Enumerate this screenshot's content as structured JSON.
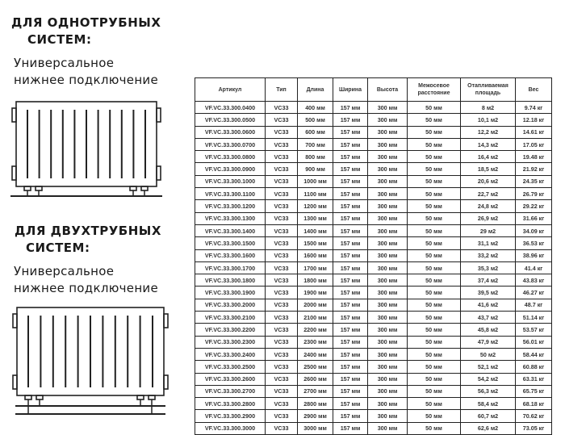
{
  "sections": [
    {
      "title_line1": "ДЛЯ ОДНОТРУБНЫХ",
      "title_line2": "СИСТЕМ:",
      "subtitle_line1": "Универсальное",
      "subtitle_line2": "нижнее подключение"
    },
    {
      "title_line1": "ДЛЯ ДВУХТРУБНЫХ",
      "title_line2": "СИСТЕМ:",
      "subtitle_line1": "Универсальное",
      "subtitle_line2": "нижнее подключение"
    }
  ],
  "table": {
    "headers": [
      "Артикул",
      "Тип",
      "Длина",
      "Ширина",
      "Высота",
      "Межосевое расстояние",
      "Отапливаемая площадь",
      "Вес"
    ],
    "rows": [
      [
        "VF.VC.33.300.0400",
        "VC33",
        "400 мм",
        "157 мм",
        "300 мм",
        "50 мм",
        "8 м2",
        "9.74 кг"
      ],
      [
        "VF.VC.33.300.0500",
        "VC33",
        "500 мм",
        "157 мм",
        "300 мм",
        "50 мм",
        "10,1 м2",
        "12.18 кг"
      ],
      [
        "VF.VC.33.300.0600",
        "VC33",
        "600 мм",
        "157 мм",
        "300 мм",
        "50 мм",
        "12,2 м2",
        "14.61 кг"
      ],
      [
        "VF.VC.33.300.0700",
        "VC33",
        "700 мм",
        "157 мм",
        "300 мм",
        "50 мм",
        "14,3 м2",
        "17.05 кг"
      ],
      [
        "VF.VC.33.300.0800",
        "VC33",
        "800 мм",
        "157 мм",
        "300 мм",
        "50 мм",
        "16,4 м2",
        "19.48 кг"
      ],
      [
        "VF.VC.33.300.0900",
        "VC33",
        "900 мм",
        "157 мм",
        "300 мм",
        "50 мм",
        "18,5 м2",
        "21.92 кг"
      ],
      [
        "VF.VC.33.300.1000",
        "VC33",
        "1000 мм",
        "157 мм",
        "300 мм",
        "50 мм",
        "20,6 м2",
        "24.35 кг"
      ],
      [
        "VF.VC.33.300.1100",
        "VC33",
        "1100 мм",
        "157 мм",
        "300 мм",
        "50 мм",
        "22,7 м2",
        "26.79 кг"
      ],
      [
        "VF.VC.33.300.1200",
        "VC33",
        "1200 мм",
        "157 мм",
        "300 мм",
        "50 мм",
        "24,8 м2",
        "29.22 кг"
      ],
      [
        "VF.VC.33.300.1300",
        "VC33",
        "1300 мм",
        "157 мм",
        "300 мм",
        "50 мм",
        "26,9 м2",
        "31.66 кг"
      ],
      [
        "VF.VC.33.300.1400",
        "VC33",
        "1400 мм",
        "157 мм",
        "300 мм",
        "50 мм",
        "29 м2",
        "34.09 кг"
      ],
      [
        "VF.VC.33.300.1500",
        "VC33",
        "1500 мм",
        "157 мм",
        "300 мм",
        "50 мм",
        "31,1 м2",
        "36.53 кг"
      ],
      [
        "VF.VC.33.300.1600",
        "VC33",
        "1600 мм",
        "157 мм",
        "300 мм",
        "50 мм",
        "33,2 м2",
        "38.96 кг"
      ],
      [
        "VF.VC.33.300.1700",
        "VC33",
        "1700 мм",
        "157 мм",
        "300 мм",
        "50 мм",
        "35,3 м2",
        "41.4 кг"
      ],
      [
        "VF.VC.33.300.1800",
        "VC33",
        "1800 мм",
        "157 мм",
        "300 мм",
        "50 мм",
        "37,4 м2",
        "43.83 кг"
      ],
      [
        "VF.VC.33.300.1900",
        "VC33",
        "1900 мм",
        "157 мм",
        "300 мм",
        "50 мм",
        "39,5 м2",
        "46.27 кг"
      ],
      [
        "VF.VC.33.300.2000",
        "VC33",
        "2000 мм",
        "157 мм",
        "300 мм",
        "50 мм",
        "41,6 м2",
        "48.7 кг"
      ],
      [
        "VF.VC.33.300.2100",
        "VC33",
        "2100 мм",
        "157 мм",
        "300 мм",
        "50 мм",
        "43,7 м2",
        "51.14 кг"
      ],
      [
        "VF.VC.33.300.2200",
        "VC33",
        "2200 мм",
        "157 мм",
        "300 мм",
        "50 мм",
        "45,8 м2",
        "53.57 кг"
      ],
      [
        "VF.VC.33.300.2300",
        "VC33",
        "2300 мм",
        "157 мм",
        "300 мм",
        "50 мм",
        "47,9 м2",
        "56.01 кг"
      ],
      [
        "VF.VC.33.300.2400",
        "VC33",
        "2400 мм",
        "157 мм",
        "300 мм",
        "50 мм",
        "50 м2",
        "58.44 кг"
      ],
      [
        "VF.VC.33.300.2500",
        "VC33",
        "2500 мм",
        "157 мм",
        "300 мм",
        "50 мм",
        "52,1 м2",
        "60.88 кг"
      ],
      [
        "VF.VC.33.300.2600",
        "VC33",
        "2600 мм",
        "157 мм",
        "300 мм",
        "50 мм",
        "54,2 м2",
        "63.31 кг"
      ],
      [
        "VF.VC.33.300.2700",
        "VC33",
        "2700 мм",
        "157 мм",
        "300 мм",
        "50 мм",
        "56,3 м2",
        "65.75 кг"
      ],
      [
        "VF.VC.33.300.2800",
        "VC33",
        "2800 мм",
        "157 мм",
        "300 мм",
        "50 мм",
        "58,4 м2",
        "68.18 кг"
      ],
      [
        "VF.VC.33.300.2900",
        "VC33",
        "2900 мм",
        "157 мм",
        "300 мм",
        "50 мм",
        "60,7 м2",
        "70.62 кг"
      ],
      [
        "VF.VC.33.300.3000",
        "VC33",
        "3000 мм",
        "157 мм",
        "300 мм",
        "50 мм",
        "62,6 м2",
        "73.05 кг"
      ]
    ]
  }
}
